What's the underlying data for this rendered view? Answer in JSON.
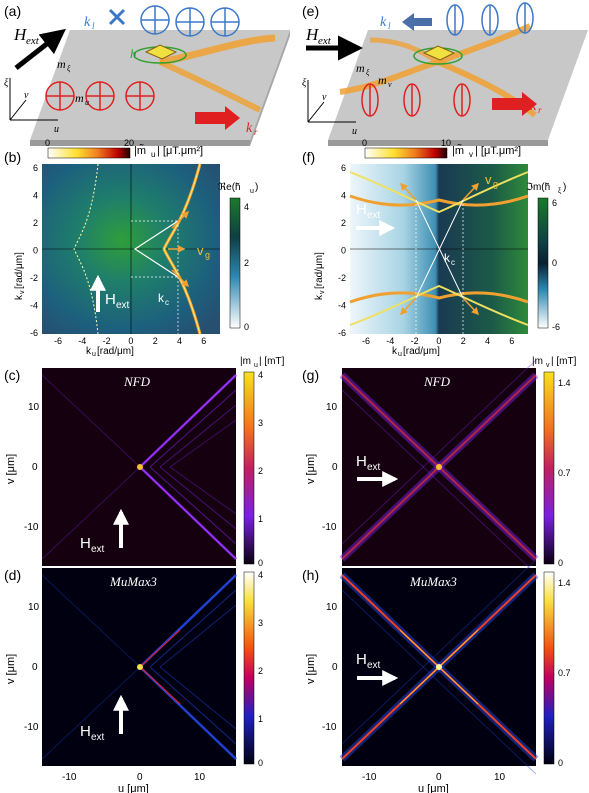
{
  "figure": {
    "panel_labels": {
      "a": "(a)",
      "b": "(b)",
      "c": "(c)",
      "d": "(d)",
      "e": "(e)",
      "f": "(f)",
      "g": "(g)",
      "h": "(h)"
    },
    "colors": {
      "slab": "#c8c8c8",
      "blue": "#3c78c8",
      "red": "#e02020",
      "orange": "#f0a030",
      "green": "#30a030",
      "antenna": "#f0e040"
    },
    "panel_a": {
      "H_ext": "H",
      "H_sub": "ext",
      "k_l": "k",
      "k_l_sub": "l",
      "k_r": "k",
      "k_r_sub": "r",
      "h": "h",
      "m_xi": "m",
      "m_xi_sub": "ξ",
      "m_u": "m",
      "m_u_sub": "u",
      "axis_xi": "ξ",
      "axis_v": "v",
      "axis_u": "u"
    },
    "panel_e": {
      "H_ext": "H",
      "H_sub": "ext",
      "k_l": "k",
      "k_l_sub": "l",
      "k_r": "k",
      "k_r_sub": "r",
      "m_xi": "m",
      "m_xi_sub": "ξ",
      "m_v": "m",
      "m_v_sub": "v",
      "axis_xi": "ξ",
      "axis_v": "v",
      "axis_u": "u"
    },
    "panel_b": {
      "cbar_top_min": "0",
      "cbar_top_max": "20",
      "cbar_top_label": "|m̃",
      "cbar_top_sub": "u",
      "cbar_top_unit": "| [μT.μm²]",
      "cbar_right_label": "ℜe(h̃",
      "cbar_right_sub": "u",
      "cbar_right_close": ")",
      "cbar_right_ticks": [
        "4",
        "2",
        "0"
      ],
      "xticks": [
        "-6",
        "-4",
        "-2",
        "0",
        "2",
        "4",
        "6"
      ],
      "yticks": [
        "6",
        "4",
        "2",
        "0",
        "-2",
        "-4",
        "-6"
      ],
      "xlabel": "k",
      "xlabel_sub": "u",
      "xlabel_unit": " [rad/μm]",
      "ylabel": "k",
      "ylabel_sub": "v",
      "ylabel_unit": " [rad/μm]",
      "H_label": "H",
      "H_sub": "ext",
      "kc": "k",
      "kc_sub": "c",
      "vg": "v",
      "vg_sub": "g"
    },
    "panel_f": {
      "cbar_top_min": "0",
      "cbar_top_max": "10",
      "cbar_top_label": "|m̃",
      "cbar_top_sub": "v",
      "cbar_top_unit": "| [μT.μm²]",
      "cbar_right_label": "ℑm(h̃",
      "cbar_right_sub": "ξ",
      "cbar_right_close": ")",
      "cbar_right_ticks": [
        "6",
        "0",
        "-6"
      ],
      "xticks": [
        "-6",
        "-4",
        "-2",
        "0",
        "2",
        "4",
        "6"
      ],
      "yticks": [
        "6",
        "4",
        "2",
        "0",
        "-2",
        "-4",
        "-6"
      ],
      "xlabel": "k",
      "xlabel_sub": "u",
      "xlabel_unit": " [rad/μm]",
      "ylabel": "k",
      "ylabel_sub": "v",
      "ylabel_unit": " [rad/μm]",
      "H_label": "H",
      "H_sub": "ext",
      "kc": "k",
      "kc_sub": "c",
      "vg": "v",
      "vg_sub": "g"
    },
    "panel_c": {
      "title": "NFD",
      "cbar_label": "|m",
      "cbar_sub": "u",
      "cbar_unit": "| [mT]",
      "cbar_ticks": [
        "4",
        "3",
        "2",
        "1",
        "0"
      ],
      "yticks": [
        "10",
        "0",
        "-10"
      ],
      "ylabel": "v [μm]",
      "H_label": "H",
      "H_sub": "ext"
    },
    "panel_d": {
      "title": "MuMax3",
      "cbar_ticks": [
        "4",
        "3",
        "2",
        "1",
        "0"
      ],
      "yticks": [
        "10",
        "0",
        "-10"
      ],
      "xticks": [
        "-10",
        "0",
        "10"
      ],
      "ylabel": "v [μm]",
      "xlabel": "u [μm]",
      "H_label": "H",
      "H_sub": "ext"
    },
    "panel_g": {
      "title": "NFD",
      "cbar_label": "|m",
      "cbar_sub": "v",
      "cbar_unit": "| [mT]",
      "cbar_ticks": [
        "1.4",
        "0.7",
        "0"
      ],
      "yticks": [
        "10",
        "0",
        "-10"
      ],
      "ylabel": "v [μm]",
      "H_label": "H",
      "H_sub": "ext"
    },
    "panel_h": {
      "title": "MuMax3",
      "cbar_ticks": [
        "1.4",
        "0.7",
        "0"
      ],
      "yticks": [
        "10",
        "0",
        "-10"
      ],
      "xticks": [
        "-10",
        "0",
        "10"
      ],
      "ylabel": "v [μm]",
      "xlabel": "u [μm]",
      "H_label": "H",
      "H_sub": "ext"
    }
  }
}
